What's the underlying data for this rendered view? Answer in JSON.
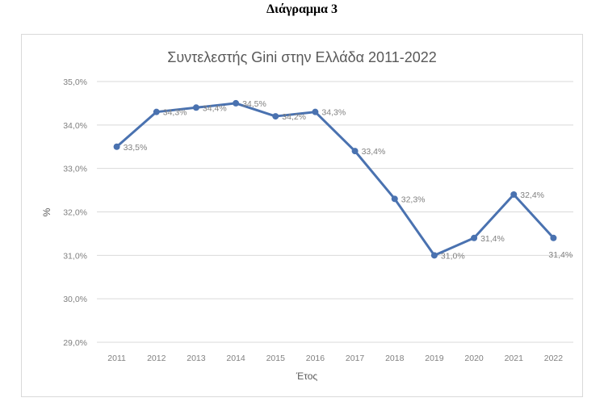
{
  "heading": "Διάγραμμα 3",
  "chart_data": {
    "type": "line",
    "title": "Συντελεστής Gini στην Ελλάδα 2011-2022",
    "xlabel": "Έτος",
    "ylabel": "%",
    "categories": [
      "2011",
      "2012",
      "2013",
      "2014",
      "2015",
      "2016",
      "2017",
      "2018",
      "2019",
      "2020",
      "2021",
      "2022"
    ],
    "series": [
      {
        "values": [
          33.5,
          34.3,
          34.4,
          34.5,
          34.2,
          34.3,
          33.4,
          32.3,
          31.0,
          31.4,
          32.4,
          31.4
        ],
        "labels": [
          "33,5%",
          "34,3%",
          "34,4%",
          "34,5%",
          "34,2%",
          "34,3%",
          "33,4%",
          "32,3%",
          "31,0%",
          "31,4%",
          "32,4%",
          "31,4%"
        ]
      }
    ],
    "ylim": [
      29,
      35
    ],
    "yticks": [
      29,
      30,
      31,
      32,
      33,
      34,
      35
    ],
    "ytick_labels": [
      "29,0%",
      "30,0%",
      "31,0%",
      "32,0%",
      "33,0%",
      "34,0%",
      "35,0%"
    ],
    "grid": true,
    "legend": "none",
    "line_color": "#4a72b0",
    "grid_color": "#d9d9d9"
  }
}
